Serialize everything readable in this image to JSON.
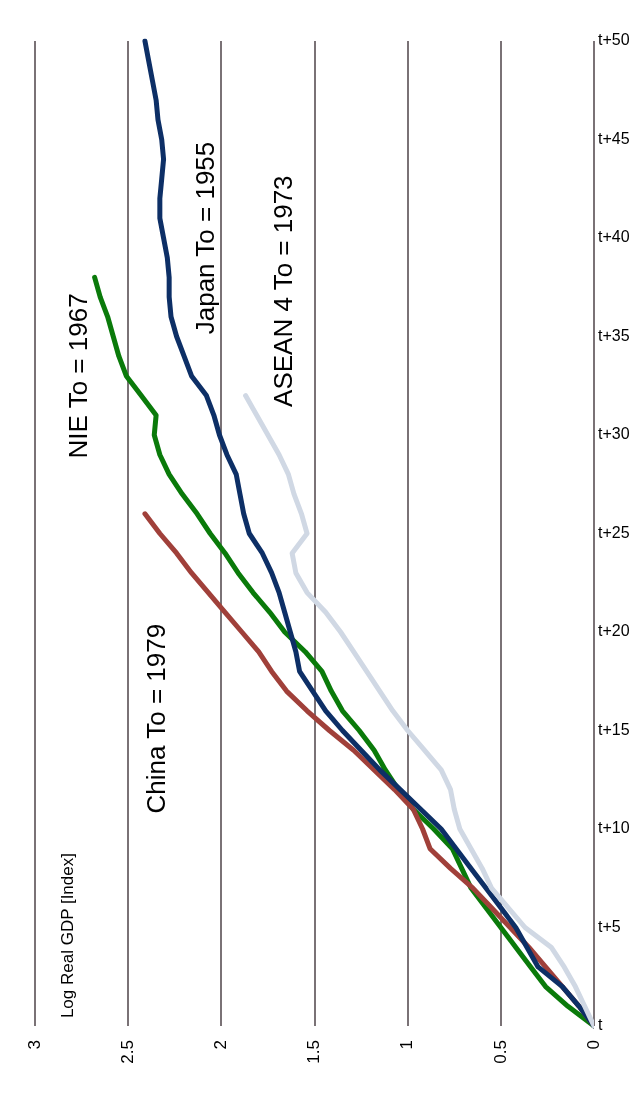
{
  "chart_data": {
    "type": "line",
    "orientation": "horizontal",
    "ylabel": "Log Real GDP [Index]",
    "categories": [
      "t+50",
      null,
      null,
      null,
      null,
      "t+45",
      null,
      null,
      null,
      null,
      "t+40",
      null,
      null,
      null,
      null,
      "t+35",
      null,
      null,
      null,
      null,
      "t+30",
      null,
      null,
      null,
      null,
      "t+25",
      null,
      null,
      null,
      null,
      "t+20",
      null,
      null,
      null,
      null,
      "t+15",
      null,
      null,
      null,
      null,
      "t+10",
      null,
      null,
      null,
      null,
      "t+5",
      null,
      null,
      null,
      null,
      "t"
    ],
    "xlim": [
      3,
      0
    ],
    "xticks": [
      3,
      2.5,
      2,
      1.5,
      1,
      0.5,
      0
    ],
    "grid": "x",
    "marker": "none",
    "line_style": "solid",
    "series": [
      {
        "name": "ASEAN 4 To = 1973",
        "color": "#d0d8e4",
        "values": [
          null,
          null,
          null,
          null,
          null,
          null,
          null,
          null,
          null,
          null,
          null,
          null,
          null,
          null,
          null,
          null,
          null,
          null,
          1.87,
          1.81,
          1.75,
          1.69,
          1.64,
          1.61,
          1.57,
          1.54,
          1.62,
          1.6,
          1.54,
          1.44,
          1.36,
          1.29,
          1.22,
          1.15,
          1.08,
          1,
          0.91,
          0.82,
          0.77,
          0.75,
          0.72,
          0.66,
          0.6,
          0.55,
          0.46,
          0.37,
          0.23,
          0.16,
          0.1,
          0.05,
          0
        ]
      },
      {
        "name": "Japan To = 1955",
        "color": "#0d2f66",
        "values": [
          2.41,
          2.39,
          2.37,
          2.35,
          2.34,
          2.32,
          2.31,
          2.32,
          2.33,
          2.33,
          2.31,
          2.29,
          2.28,
          2.28,
          2.27,
          2.24,
          2.2,
          2.16,
          2.08,
          2.04,
          2.01,
          1.97,
          1.92,
          1.9,
          1.88,
          1.85,
          1.78,
          1.73,
          1.69,
          1.66,
          1.63,
          1.6,
          1.58,
          1.51,
          1.44,
          1.35,
          1.25,
          1.15,
          1.04,
          0.93,
          0.82,
          0.74,
          0.66,
          0.58,
          0.5,
          0.42,
          0.36,
          0.3,
          0.17,
          0.08,
          0
        ]
      },
      {
        "name": "China To = 1979",
        "color": "#a0403a",
        "values": [
          null,
          null,
          null,
          null,
          null,
          null,
          null,
          null,
          null,
          null,
          null,
          null,
          null,
          null,
          null,
          null,
          null,
          null,
          null,
          null,
          null,
          null,
          null,
          null,
          2.41,
          2.33,
          2.24,
          2.16,
          2.07,
          1.98,
          1.89,
          1.8,
          1.73,
          1.65,
          1.54,
          1.42,
          1.29,
          1.18,
          1.07,
          0.97,
          0.92,
          0.88,
          0.77,
          0.65,
          0.55,
          0.45,
          0.35,
          0.26,
          0.17,
          0.08,
          0
        ]
      },
      {
        "name": "NIE To = 1967",
        "color": "#0a7a0a",
        "values": [
          null,
          null,
          null,
          null,
          null,
          null,
          null,
          null,
          null,
          null,
          null,
          null,
          2.68,
          2.65,
          2.61,
          2.58,
          2.55,
          2.51,
          2.43,
          2.35,
          2.36,
          2.33,
          2.28,
          2.21,
          2.13,
          2.06,
          1.98,
          1.91,
          1.83,
          1.74,
          1.66,
          1.55,
          1.46,
          1.41,
          1.35,
          1.26,
          1.18,
          1.12,
          1.05,
          0.97,
          0.86,
          0.76,
          0.71,
          0.66,
          0.58,
          0.5,
          0.42,
          0.34,
          0.26,
          0.14,
          0
        ]
      }
    ]
  }
}
